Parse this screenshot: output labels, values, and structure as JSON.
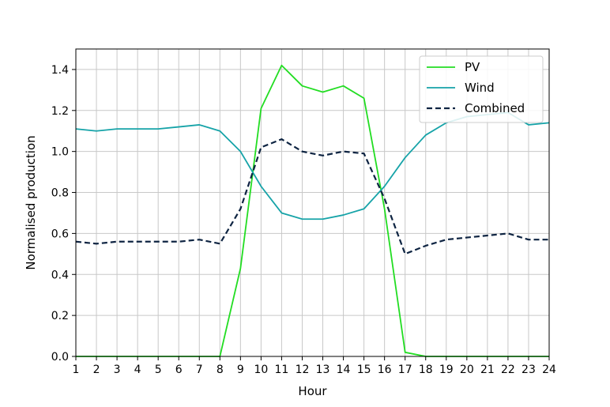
{
  "chart_data": {
    "type": "line",
    "xlabel": "Hour",
    "ylabel": "Normalised production",
    "xlim": [
      1,
      24
    ],
    "ylim": [
      0,
      1.5
    ],
    "xticks": [
      1,
      2,
      3,
      4,
      5,
      6,
      7,
      8,
      9,
      10,
      11,
      12,
      13,
      14,
      15,
      16,
      17,
      18,
      19,
      20,
      21,
      22,
      23,
      24
    ],
    "yticks": [
      0.0,
      0.2,
      0.4,
      0.6,
      0.8,
      1.0,
      1.2,
      1.4
    ],
    "ytick_labels": [
      "0.0",
      "0.2",
      "0.4",
      "0.6",
      "0.8",
      "1.0",
      "1.2",
      "1.4"
    ],
    "grid": true,
    "legend_position": "top-right",
    "x": [
      1,
      2,
      3,
      4,
      5,
      6,
      7,
      8,
      9,
      10,
      11,
      12,
      13,
      14,
      15,
      16,
      17,
      18,
      19,
      20,
      21,
      22,
      23,
      24
    ],
    "series": [
      {
        "name": "PV",
        "color": "#22dd22",
        "style": "solid",
        "values": [
          0,
          0,
          0,
          0,
          0,
          0,
          0,
          0,
          0.43,
          1.21,
          1.42,
          1.32,
          1.29,
          1.32,
          1.26,
          0.72,
          0.02,
          0,
          0,
          0,
          0,
          0,
          0,
          0
        ]
      },
      {
        "name": "Wind",
        "color": "#16a3a8",
        "style": "solid",
        "values": [
          1.11,
          1.1,
          1.11,
          1.11,
          1.11,
          1.12,
          1.13,
          1.1,
          1.0,
          0.83,
          0.7,
          0.67,
          0.67,
          0.69,
          0.72,
          0.83,
          0.97,
          1.08,
          1.14,
          1.17,
          1.18,
          1.19,
          1.13,
          1.14
        ]
      },
      {
        "name": "Combined",
        "color": "#0e2442",
        "style": "dashed",
        "values": [
          0.56,
          0.55,
          0.56,
          0.56,
          0.56,
          0.56,
          0.57,
          0.55,
          0.72,
          1.02,
          1.06,
          1.0,
          0.98,
          1.0,
          0.99,
          0.77,
          0.5,
          0.54,
          0.57,
          0.58,
          0.59,
          0.6,
          0.57,
          0.57
        ]
      }
    ]
  }
}
